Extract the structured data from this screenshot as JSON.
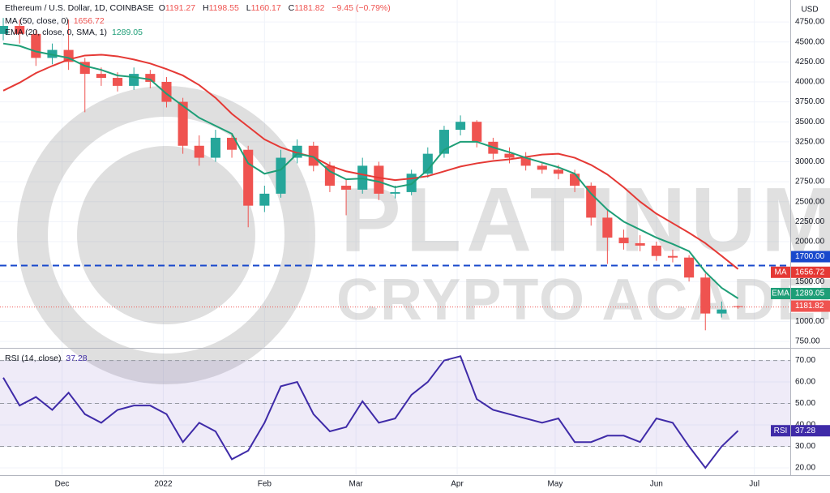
{
  "chart_data": [
    {
      "type": "candlestick",
      "title": "Ethereum / U.S. Dollar, 1D, COINBASE",
      "ohlc_prefixes": [
        "O",
        "H",
        "L",
        "C"
      ],
      "change": "−9.45 (−0.79%)",
      "y_axis_label": "USD",
      "watermark": [
        "PLATINUM",
        "CRYPTO ACADEMY"
      ],
      "x": [
        1,
        6,
        11,
        16,
        21,
        26,
        31,
        36,
        41,
        46,
        51,
        56,
        61,
        66,
        71,
        76,
        81,
        86,
        91,
        96,
        101,
        106,
        111,
        116,
        121,
        126,
        131,
        136,
        141,
        146,
        151,
        156,
        161,
        166,
        171,
        176,
        181,
        186,
        191,
        196,
        201,
        206,
        211,
        216,
        221,
        226
      ],
      "open": [
        4600,
        4700,
        4600,
        4300,
        4400,
        4250,
        4100,
        4050,
        3950,
        4100,
        4000,
        3750,
        3200,
        3050,
        3300,
        3150,
        2450,
        2600,
        3050,
        3200,
        2950,
        2700,
        2650,
        2950,
        2600,
        2620,
        2850,
        3100,
        3400,
        3500,
        3250,
        3100,
        3050,
        2950,
        2900,
        2850,
        2700,
        2300,
        2050,
        1980,
        1950,
        1820,
        1800,
        1550,
        1100,
        1191.27
      ],
      "high": [
        4800,
        4780,
        4650,
        4480,
        4780,
        4300,
        4180,
        4120,
        4180,
        4150,
        4060,
        3800,
        3330,
        3400,
        3360,
        3200,
        2700,
        3150,
        3280,
        3250,
        3000,
        2780,
        3050,
        3000,
        2700,
        2900,
        3180,
        3450,
        3580,
        3520,
        3300,
        3180,
        3120,
        3000,
        2960,
        2900,
        2740,
        2400,
        2150,
        2080,
        2000,
        1900,
        1830,
        1600,
        1250,
        1198.55
      ],
      "low": [
        4520,
        4480,
        4200,
        4220,
        4150,
        3620,
        3950,
        3880,
        3900,
        3920,
        3680,
        3100,
        2950,
        3000,
        3050,
        2180,
        2370,
        2550,
        2980,
        2880,
        2620,
        2330,
        2600,
        2520,
        2540,
        2580,
        2800,
        3050,
        3330,
        3180,
        3030,
        2980,
        2890,
        2850,
        2780,
        2620,
        2200,
        1720,
        1900,
        1880,
        1760,
        1740,
        1500,
        890,
        1050,
        1160.17
      ],
      "close": [
        4700,
        4600,
        4300,
        4400,
        4250,
        4100,
        4050,
        3950,
        4100,
        4000,
        3750,
        3200,
        3050,
        3300,
        3150,
        2450,
        2600,
        3050,
        3200,
        2950,
        2700,
        2650,
        2950,
        2600,
        2620,
        2850,
        3100,
        3400,
        3500,
        3250,
        3100,
        3050,
        2950,
        2900,
        2850,
        2700,
        2300,
        2050,
        1980,
        1950,
        1820,
        1800,
        1550,
        1100,
        1150,
        1181.82
      ],
      "up_color": "#26a69a",
      "down_color": "#ef5350",
      "series": [
        {
          "name": "MA (50, close, 0)",
          "short_name": "MA",
          "color": "#e53935",
          "values": [
            3890,
            3990,
            4110,
            4200,
            4280,
            4330,
            4340,
            4320,
            4280,
            4230,
            4160,
            4080,
            3960,
            3800,
            3600,
            3440,
            3280,
            3180,
            3110,
            3060,
            2950,
            2880,
            2840,
            2800,
            2770,
            2790,
            2820,
            2880,
            2940,
            2980,
            3010,
            3030,
            3060,
            3090,
            3100,
            3050,
            2960,
            2840,
            2680,
            2500,
            2350,
            2230,
            2110,
            1980,
            1820,
            1656.72
          ]
        },
        {
          "name": "EMA (20, close, 0, SMA, 1)",
          "short_name": "EMA",
          "color": "#1e9e77",
          "values": [
            4480,
            4450,
            4380,
            4340,
            4300,
            4200,
            4150,
            4080,
            4060,
            4030,
            3850,
            3700,
            3550,
            3450,
            3350,
            2980,
            2850,
            2900,
            3100,
            3060,
            2880,
            2780,
            2790,
            2750,
            2680,
            2720,
            2900,
            3150,
            3250,
            3250,
            3180,
            3120,
            3050,
            2990,
            2930,
            2850,
            2600,
            2400,
            2250,
            2150,
            2050,
            1970,
            1880,
            1620,
            1420,
            1289.05
          ]
        }
      ],
      "hlines": [
        {
          "value": 1700,
          "label": "1700.00",
          "color": "#1848cc"
        }
      ],
      "xlim": [
        0,
        242
      ],
      "xticks": [
        {
          "value": 19,
          "label": "Dec"
        },
        {
          "value": 50,
          "label": "2022"
        },
        {
          "value": 81,
          "label": "Feb"
        },
        {
          "value": 109,
          "label": "Mar"
        },
        {
          "value": 140,
          "label": "Apr"
        },
        {
          "value": 170,
          "label": "May"
        },
        {
          "value": 201,
          "label": "Jun"
        },
        {
          "value": 231,
          "label": "Jul"
        }
      ],
      "ylim": [
        680,
        5025
      ],
      "yticks": [
        {
          "value": 750,
          "label": "750.00"
        },
        {
          "value": 1000,
          "label": "1000.00"
        },
        {
          "value": 1500,
          "label": "1500.00"
        },
        {
          "value": 2000,
          "label": "2000.00"
        },
        {
          "value": 2250,
          "label": "2250.00"
        },
        {
          "value": 2500,
          "label": "2500.00"
        },
        {
          "value": 2750,
          "label": "2750.00"
        },
        {
          "value": 3000,
          "label": "3000.00"
        },
        {
          "value": 3250,
          "label": "3250.00"
        },
        {
          "value": 3500,
          "label": "3500.00"
        },
        {
          "value": 3750,
          "label": "3750.00"
        },
        {
          "value": 4000,
          "label": "4000.00"
        },
        {
          "value": 4250,
          "label": "4250.00"
        },
        {
          "value": 4500,
          "label": "4500.00"
        },
        {
          "value": 4750,
          "label": "4750.00"
        }
      ],
      "grid": true
    },
    {
      "type": "line",
      "title": "RSI (14, close)",
      "short_name": "RSI",
      "color": "#3f2ba8",
      "values": [
        62,
        49,
        53,
        47,
        55,
        45,
        41,
        47,
        49,
        49,
        45,
        32,
        41,
        37,
        24,
        28,
        41,
        58,
        60,
        45,
        37,
        39,
        51,
        41,
        43,
        54,
        60,
        70,
        72,
        52,
        47,
        45,
        43,
        41,
        43,
        32,
        32,
        35,
        35,
        32,
        43,
        41,
        30,
        20,
        30,
        37.28
      ],
      "band": [
        30,
        70
      ],
      "band_color": "#7e57c2",
      "levels": [
        30,
        50,
        70
      ],
      "ylim": [
        16.6,
        75.5
      ],
      "yticks": [
        {
          "value": 20,
          "label": "20.00"
        },
        {
          "value": 30,
          "label": "30.00"
        },
        {
          "value": 40,
          "label": "40.00"
        },
        {
          "value": 50,
          "label": "50.00"
        },
        {
          "value": 60,
          "label": "60.00"
        },
        {
          "value": 70,
          "label": "70.00"
        }
      ],
      "grid": true
    }
  ]
}
